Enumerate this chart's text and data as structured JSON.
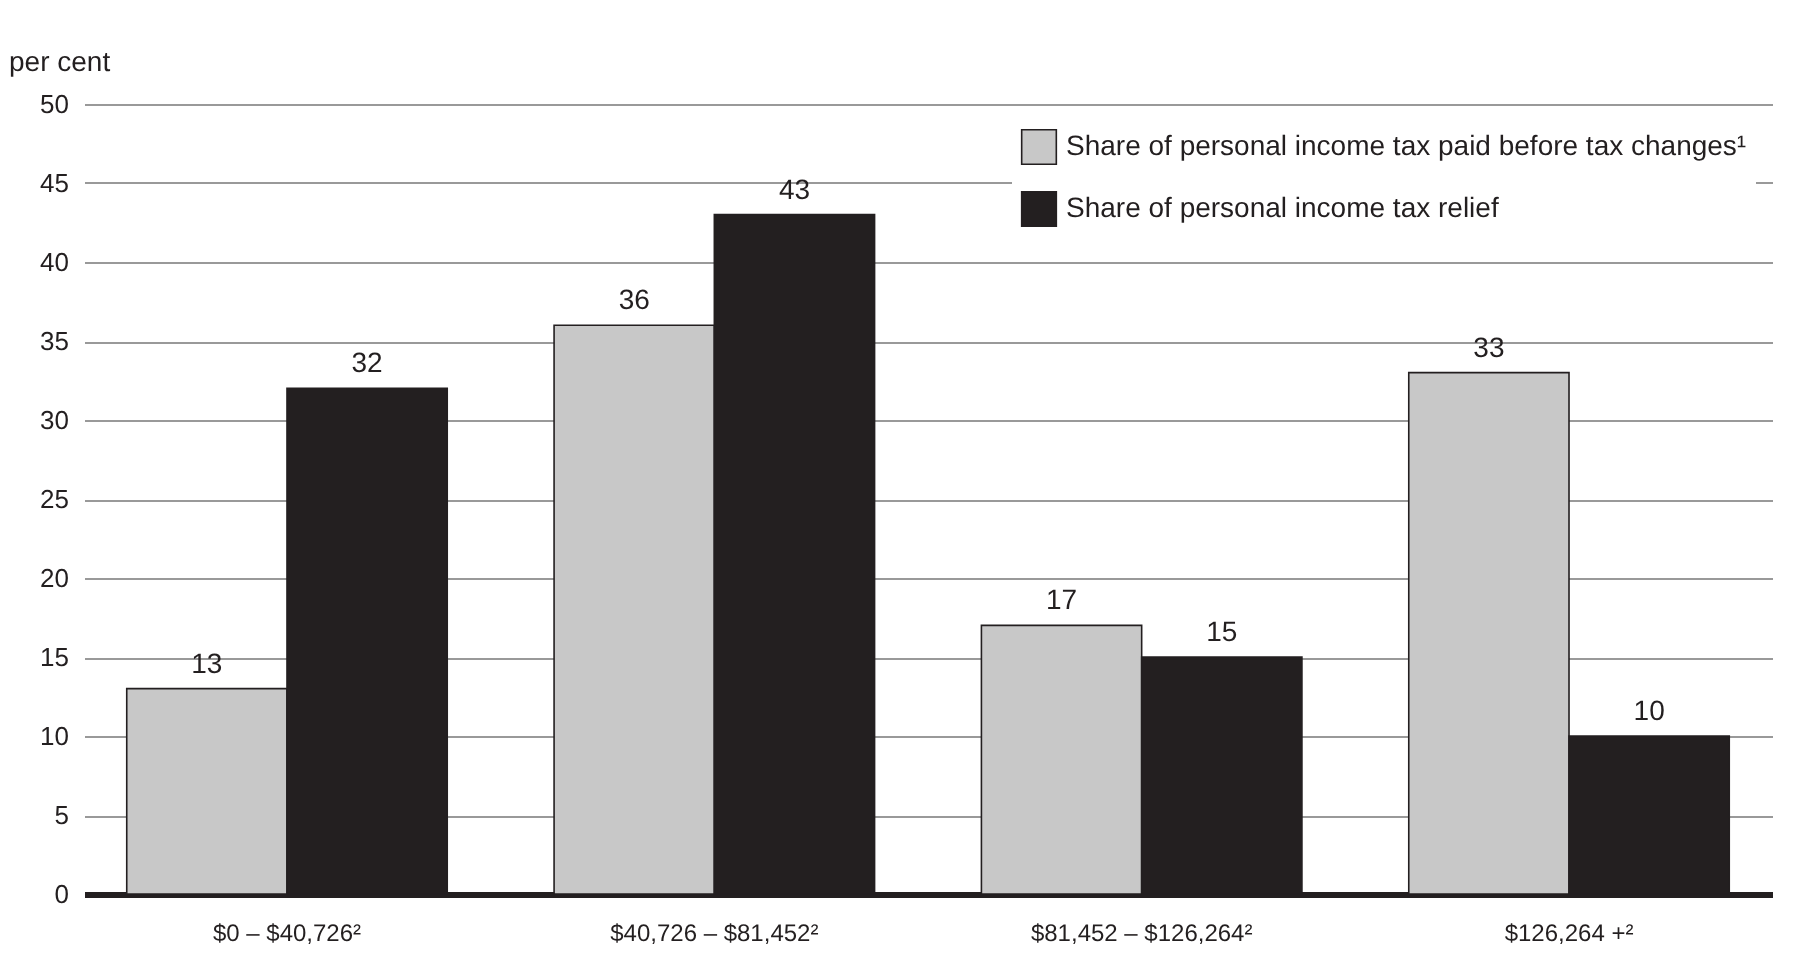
{
  "chart_data": {
    "type": "bar",
    "ylabel": "per cent",
    "categories": [
      "$0 – $40,726²",
      "$40,726 – $81,452²",
      "$81,452 – $126,264²",
      "$126,264 +²"
    ],
    "series": [
      {
        "name": "Share of personal income tax paid before tax changes¹",
        "color": "#c8c8c8",
        "values": [
          13,
          36,
          17,
          33
        ]
      },
      {
        "name": "Share of personal income tax relief",
        "color": "#231f20",
        "values": [
          32,
          43,
          15,
          10
        ]
      }
    ],
    "ylim": [
      0,
      50
    ],
    "yticks": [
      0,
      5,
      10,
      15,
      20,
      25,
      30,
      35,
      40,
      45,
      50
    ],
    "grid": "y",
    "legend": "top right",
    "data_labels": true
  }
}
